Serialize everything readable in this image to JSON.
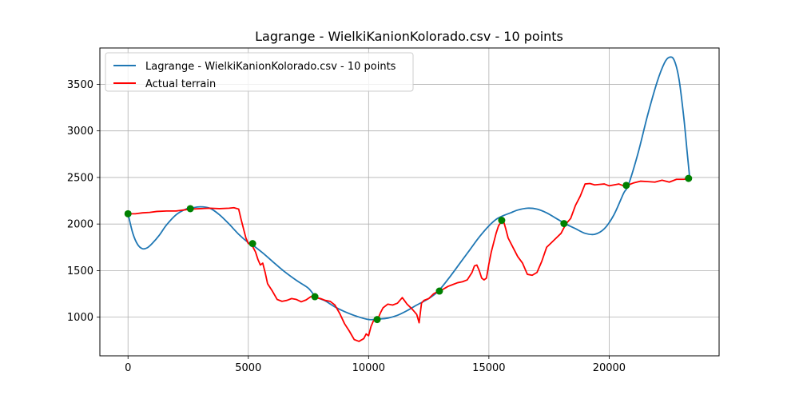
{
  "chart_data": {
    "type": "line",
    "title": "Lagrange - WielkiKanionKolorado.csv - 10 points",
    "xlabel": "",
    "ylabel": "",
    "xlim": [
      -1170,
      24570
    ],
    "ylim": [
      585,
      3890
    ],
    "xticks": [
      0,
      5000,
      10000,
      15000,
      20000
    ],
    "yticks": [
      1000,
      1500,
      2000,
      2500,
      3000,
      3500
    ],
    "grid": true,
    "legend": {
      "placement": "top-left"
    },
    "series": [
      {
        "name": "Lagrange - WielkiKanionKolorado.csv - 10 points",
        "color": "#1f77b4",
        "x": [
          0,
          200,
          400,
          600,
          800,
          1000,
          1300,
          1600,
          2000,
          2400,
          2600,
          3000,
          3400,
          3800,
          4200,
          4600,
          5000,
          5200,
          5600,
          6000,
          6500,
          7000,
          7500,
          7800,
          8200,
          8600,
          9000,
          9500,
          10000,
          10400,
          10800,
          11200,
          11600,
          12000,
          12500,
          12900,
          13400,
          13800,
          14200,
          14600,
          15000,
          15300,
          15600,
          15900,
          16200,
          16600,
          17000,
          17400,
          17800,
          18200,
          18600,
          19000,
          19400,
          19800,
          20200,
          20600,
          20800,
          21200,
          21600,
          22000,
          22300,
          22500,
          22700,
          22900,
          23100,
          23250,
          23350
        ],
        "y": [
          2110,
          1900,
          1780,
          1735,
          1745,
          1790,
          1880,
          1990,
          2100,
          2160,
          2170,
          2185,
          2170,
          2100,
          2000,
          1890,
          1800,
          1770,
          1690,
          1600,
          1490,
          1395,
          1310,
          1220,
          1175,
          1110,
          1060,
          1010,
          975,
          980,
          990,
          1020,
          1070,
          1130,
          1200,
          1280,
          1440,
          1580,
          1720,
          1860,
          1980,
          2050,
          2090,
          2120,
          2150,
          2170,
          2160,
          2120,
          2060,
          2000,
          1950,
          1900,
          1890,
          1950,
          2100,
          2330,
          2420,
          2760,
          3170,
          3530,
          3730,
          3790,
          3760,
          3560,
          3150,
          2750,
          2490
        ]
      },
      {
        "name": "Actual terrain",
        "color": "#ff0000",
        "x": [
          0,
          300,
          600,
          900,
          1200,
          1600,
          2000,
          2300,
          2600,
          3000,
          3400,
          3800,
          4200,
          4400,
          4600,
          4700,
          4800,
          4900,
          5000,
          5100,
          5200,
          5300,
          5400,
          5500,
          5600,
          5700,
          5800,
          6000,
          6200,
          6400,
          6600,
          6800,
          7000,
          7200,
          7400,
          7600,
          7800,
          8000,
          8200,
          8400,
          8600,
          8800,
          9000,
          9200,
          9400,
          9600,
          9800,
          9900,
          10000,
          10100,
          10200,
          10300,
          10400,
          10500,
          10600,
          10800,
          11000,
          11200,
          11400,
          11600,
          11800,
          12000,
          12100,
          12200,
          12300,
          12500,
          12700,
          12900,
          13100,
          13300,
          13500,
          13700,
          13900,
          14100,
          14300,
          14400,
          14500,
          14600,
          14700,
          14800,
          14900,
          15000,
          15100,
          15200,
          15300,
          15400,
          15500,
          15600,
          15700,
          15800,
          16000,
          16200,
          16400,
          16600,
          16800,
          17000,
          17200,
          17400,
          17600,
          17800,
          18000,
          18200,
          18400,
          18600,
          18800,
          19000,
          19200,
          19400,
          19600,
          19800,
          20000,
          20200,
          20400,
          20600,
          20800,
          21000,
          21300,
          21600,
          21900,
          22200,
          22500,
          22800,
          23100,
          23350
        ],
        "y": [
          2110,
          2110,
          2120,
          2125,
          2135,
          2140,
          2140,
          2150,
          2160,
          2165,
          2170,
          2165,
          2170,
          2175,
          2160,
          2050,
          1950,
          1850,
          1790,
          1785,
          1750,
          1700,
          1620,
          1560,
          1580,
          1480,
          1360,
          1280,
          1190,
          1170,
          1180,
          1200,
          1190,
          1165,
          1185,
          1220,
          1210,
          1200,
          1180,
          1170,
          1130,
          1040,
          930,
          850,
          760,
          740,
          770,
          820,
          800,
          900,
          960,
          970,
          990,
          1050,
          1100,
          1140,
          1130,
          1150,
          1210,
          1140,
          1090,
          1030,
          940,
          1150,
          1180,
          1200,
          1250,
          1280,
          1300,
          1330,
          1350,
          1370,
          1380,
          1400,
          1480,
          1550,
          1560,
          1500,
          1420,
          1400,
          1420,
          1570,
          1700,
          1800,
          1900,
          1980,
          2020,
          2040,
          1950,
          1850,
          1750,
          1650,
          1580,
          1460,
          1450,
          1480,
          1600,
          1750,
          1800,
          1850,
          1900,
          2000,
          2060,
          2200,
          2300,
          2430,
          2435,
          2420,
          2425,
          2430,
          2410,
          2420,
          2430,
          2410,
          2420,
          2440,
          2460,
          2455,
          2450,
          2470,
          2450,
          2480,
          2480,
          2490
        ]
      }
    ],
    "sample_points": {
      "color": "#008000",
      "x": [
        0,
        2589,
        5178,
        7767,
        10356,
        12944,
        15533,
        18122,
        20711,
        23300
      ],
      "y": [
        2110,
        2165,
        1790,
        1220,
        975,
        1280,
        2040,
        2005,
        2415,
        2490
      ]
    }
  }
}
